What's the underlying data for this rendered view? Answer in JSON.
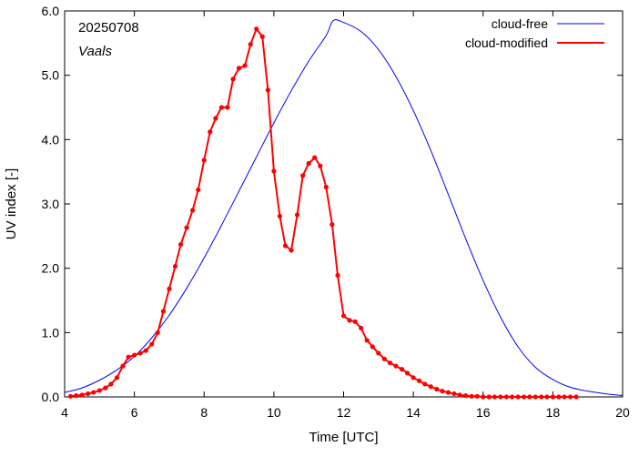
{
  "chart_data": {
    "type": "line",
    "date": "20250708",
    "location": "Vaals",
    "xlabel": "Time  [UTC]",
    "ylabel": "UV index  [-]",
    "xlim": [
      4,
      20
    ],
    "ylim": [
      0,
      6
    ],
    "xticks": [
      4,
      6,
      8,
      10,
      12,
      14,
      16,
      18,
      20
    ],
    "xtick_labels": [
      "4",
      "6",
      "8",
      "10",
      "12",
      "14",
      "16",
      "18",
      "20"
    ],
    "yticks": [
      0,
      1,
      2,
      3,
      4,
      5,
      6
    ],
    "ytick_labels": [
      "0.0",
      "1.0",
      "2.0",
      "3.0",
      "4.0",
      "5.0",
      "6.0"
    ],
    "legend_position": "top-right",
    "series": [
      {
        "name": "cloud-free",
        "color": "#0000ff",
        "markers": false,
        "x": [
          4.0,
          4.5,
          5.0,
          5.5,
          6.0,
          6.5,
          7.0,
          7.5,
          8.0,
          8.5,
          9.0,
          9.5,
          10.0,
          10.5,
          11.0,
          11.5,
          11.7,
          12.0,
          12.5,
          13.0,
          13.5,
          14.0,
          14.5,
          15.0,
          15.5,
          16.0,
          16.5,
          17.0,
          17.5,
          18.0,
          18.5,
          19.0,
          19.5,
          20.0
        ],
        "y": [
          0.07,
          0.14,
          0.26,
          0.42,
          0.63,
          0.92,
          1.27,
          1.69,
          2.16,
          2.67,
          3.2,
          3.73,
          4.26,
          4.76,
          5.22,
          5.62,
          5.85,
          5.82,
          5.68,
          5.4,
          4.98,
          4.45,
          3.83,
          3.15,
          2.46,
          1.81,
          1.24,
          0.78,
          0.46,
          0.27,
          0.15,
          0.09,
          0.05,
          0.02
        ]
      },
      {
        "name": "cloud-modified",
        "color": "#ff0000",
        "markers": true,
        "x": [
          4.17,
          4.33,
          4.5,
          4.67,
          4.83,
          5.0,
          5.17,
          5.33,
          5.5,
          5.67,
          5.83,
          6.0,
          6.17,
          6.33,
          6.5,
          6.67,
          6.83,
          7.0,
          7.17,
          7.33,
          7.5,
          7.67,
          7.83,
          8.0,
          8.17,
          8.33,
          8.5,
          8.67,
          8.83,
          9.0,
          9.17,
          9.33,
          9.5,
          9.67,
          9.83,
          10.0,
          10.17,
          10.33,
          10.5,
          10.67,
          10.83,
          11.0,
          11.17,
          11.33,
          11.5,
          11.67,
          11.83,
          12.0,
          12.17,
          12.33,
          12.5,
          12.67,
          12.83,
          13.0,
          13.17,
          13.33,
          13.5,
          13.67,
          13.83,
          14.0,
          14.17,
          14.33,
          14.5,
          14.67,
          14.83,
          15.0,
          15.17,
          15.33,
          15.5,
          15.67,
          15.83,
          16.0,
          16.17,
          16.33,
          16.5,
          16.67,
          16.83,
          17.0,
          17.17,
          17.33,
          17.5,
          17.67,
          17.83,
          18.0,
          18.17,
          18.33,
          18.5,
          18.67
        ],
        "y": [
          0.01,
          0.02,
          0.03,
          0.05,
          0.07,
          0.1,
          0.14,
          0.2,
          0.3,
          0.48,
          0.62,
          0.65,
          0.68,
          0.72,
          0.82,
          1.0,
          1.33,
          1.68,
          2.03,
          2.37,
          2.63,
          2.9,
          3.22,
          3.68,
          4.12,
          4.33,
          4.5,
          4.5,
          4.94,
          5.11,
          5.15,
          5.48,
          5.72,
          5.6,
          4.77,
          3.51,
          2.81,
          2.35,
          2.28,
          2.83,
          3.44,
          3.63,
          3.72,
          3.59,
          3.26,
          2.68,
          1.89,
          1.26,
          1.19,
          1.17,
          1.07,
          0.88,
          0.78,
          0.68,
          0.59,
          0.53,
          0.48,
          0.43,
          0.37,
          0.3,
          0.25,
          0.2,
          0.16,
          0.12,
          0.09,
          0.07,
          0.05,
          0.03,
          0.02,
          0.01,
          0.01,
          0.0,
          0.0,
          0.0,
          0.0,
          0.0,
          0.0,
          0.0,
          0.0,
          0.0,
          0.0,
          0.0,
          0.0,
          0.0,
          0.0,
          0.0,
          0.0,
          0.0
        ]
      }
    ]
  }
}
